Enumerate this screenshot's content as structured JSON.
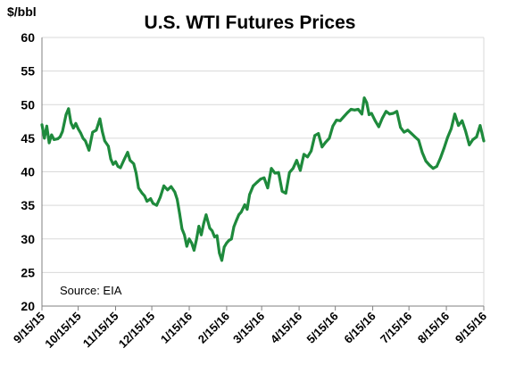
{
  "chart_data": {
    "type": "line",
    "title": "U.S. WTI Futures Prices",
    "ylabel": "$/bbl",
    "xlabel": "",
    "ylim": [
      20,
      60
    ],
    "yticks": [
      "20",
      "25",
      "30",
      "35",
      "40",
      "45",
      "50",
      "55",
      "60"
    ],
    "xlim": [
      "2015-09-15",
      "2016-09-15"
    ],
    "xticks": [
      {
        "date": "2015-09-15",
        "label": "9/15/15"
      },
      {
        "date": "2015-10-15",
        "label": "10/15/15"
      },
      {
        "date": "2015-11-15",
        "label": "11/15/15"
      },
      {
        "date": "2015-12-15",
        "label": "12/15/15"
      },
      {
        "date": "2016-01-15",
        "label": "1/15/16"
      },
      {
        "date": "2016-02-15",
        "label": "2/15/16"
      },
      {
        "date": "2016-03-15",
        "label": "3/15/16"
      },
      {
        "date": "2016-04-15",
        "label": "4/15/16"
      },
      {
        "date": "2016-05-15",
        "label": "5/15/16"
      },
      {
        "date": "2016-06-15",
        "label": "6/15/16"
      },
      {
        "date": "2016-07-15",
        "label": "7/15/16"
      },
      {
        "date": "2016-08-15",
        "label": "8/15/16"
      },
      {
        "date": "2016-09-15",
        "label": "9/15/16"
      }
    ],
    "grid": {
      "horizontal": true,
      "vertical": false
    },
    "annotation": "Source: EIA",
    "line_color": "#1e8a3c",
    "series": [
      {
        "name": "",
        "x": [
          "2015-09-15",
          "2015-09-17",
          "2015-09-19",
          "2015-09-21",
          "2015-09-23",
          "2015-09-25",
          "2015-09-28",
          "2015-09-30",
          "2015-10-02",
          "2015-10-05",
          "2015-10-07",
          "2015-10-09",
          "2015-10-11",
          "2015-10-13",
          "2015-10-15",
          "2015-10-17",
          "2015-10-19",
          "2015-10-21",
          "2015-10-24",
          "2015-10-27",
          "2015-10-30",
          "2015-11-02",
          "2015-11-04",
          "2015-11-06",
          "2015-11-09",
          "2015-11-11",
          "2015-11-13",
          "2015-11-15",
          "2015-11-17",
          "2015-11-19",
          "2015-11-22",
          "2015-11-25",
          "2015-11-27",
          "2015-11-30",
          "2015-12-02",
          "2015-12-04",
          "2015-12-07",
          "2015-12-09",
          "2015-12-11",
          "2015-12-14",
          "2015-12-16",
          "2015-12-19",
          "2015-12-22",
          "2015-12-25",
          "2015-12-28",
          "2015-12-31",
          "2016-01-03",
          "2016-01-05",
          "2016-01-07",
          "2016-01-09",
          "2016-01-11",
          "2016-01-13",
          "2016-01-15",
          "2016-01-17",
          "2016-01-19",
          "2016-01-21",
          "2016-01-23",
          "2016-01-25",
          "2016-01-27",
          "2016-01-29",
          "2016-02-01",
          "2016-02-03",
          "2016-02-05",
          "2016-02-07",
          "2016-02-09",
          "2016-02-11",
          "2016-02-13",
          "2016-02-15",
          "2016-02-17",
          "2016-02-19",
          "2016-02-21",
          "2016-02-23",
          "2016-02-25",
          "2016-02-27",
          "2016-03-01",
          "2016-03-03",
          "2016-03-05",
          "2016-03-08",
          "2016-03-11",
          "2016-03-14",
          "2016-03-17",
          "2016-03-20",
          "2016-03-23",
          "2016-03-26",
          "2016-03-29",
          "2016-04-01",
          "2016-04-04",
          "2016-04-07",
          "2016-04-10",
          "2016-04-13",
          "2016-04-16",
          "2016-04-19",
          "2016-04-22",
          "2016-04-25",
          "2016-04-28",
          "2016-05-01",
          "2016-05-04",
          "2016-05-07",
          "2016-05-10",
          "2016-05-13",
          "2016-05-16",
          "2016-05-19",
          "2016-05-22",
          "2016-05-25",
          "2016-05-28",
          "2016-05-31",
          "2016-06-03",
          "2016-06-06",
          "2016-06-08",
          "2016-06-10",
          "2016-06-12",
          "2016-06-14",
          "2016-06-17",
          "2016-06-20",
          "2016-06-23",
          "2016-06-26",
          "2016-06-29",
          "2016-07-02",
          "2016-07-05",
          "2016-07-08",
          "2016-07-11",
          "2016-07-14",
          "2016-07-17",
          "2016-07-20",
          "2016-07-23",
          "2016-07-26",
          "2016-07-29",
          "2016-08-01",
          "2016-08-04",
          "2016-08-07",
          "2016-08-10",
          "2016-08-13",
          "2016-08-16",
          "2016-08-19",
          "2016-08-22",
          "2016-08-25",
          "2016-08-28",
          "2016-08-31",
          "2016-09-03",
          "2016-09-06",
          "2016-09-09",
          "2016-09-12",
          "2016-09-15"
        ],
        "values": [
          47.0,
          45.0,
          46.8,
          44.3,
          45.5,
          44.8,
          44.9,
          45.2,
          46.0,
          48.5,
          49.4,
          47.3,
          46.5,
          47.2,
          46.4,
          45.8,
          45.0,
          44.6,
          43.2,
          45.9,
          46.2,
          47.9,
          46.0,
          44.6,
          43.8,
          41.9,
          41.1,
          41.5,
          40.8,
          40.6,
          41.8,
          42.9,
          41.7,
          41.2,
          39.8,
          37.6,
          36.8,
          36.4,
          35.6,
          36.0,
          35.3,
          35.0,
          36.2,
          37.9,
          37.3,
          37.8,
          37.0,
          35.9,
          33.8,
          31.5,
          30.6,
          28.9,
          30.0,
          29.4,
          28.3,
          29.9,
          31.9,
          30.6,
          32.3,
          33.6,
          31.6,
          31.2,
          30.3,
          30.5,
          27.9,
          26.8,
          28.8,
          29.4,
          29.8,
          30.0,
          31.8,
          32.7,
          33.6,
          34.0,
          35.1,
          34.4,
          36.6,
          37.9,
          38.4,
          38.9,
          39.1,
          37.6,
          40.5,
          39.8,
          39.9,
          37.1,
          36.8,
          39.9,
          40.5,
          41.7,
          40.2,
          42.6,
          42.2,
          43.1,
          45.4,
          45.7,
          43.7,
          44.4,
          45.0,
          46.8,
          47.7,
          47.6,
          48.2,
          48.8,
          49.3,
          49.2,
          49.3,
          48.6,
          51.0,
          50.3,
          48.5,
          48.7,
          47.6,
          46.7,
          48.0,
          49.0,
          48.6,
          48.7,
          49.0,
          46.6,
          45.9,
          46.2,
          45.7,
          45.2,
          44.7,
          42.9,
          41.6,
          41.0,
          40.5,
          40.8,
          42.0,
          43.5,
          45.1,
          46.4,
          48.6,
          46.9,
          47.6,
          46.0,
          44.0,
          44.8,
          45.2,
          46.9,
          44.6
        ]
      }
    ]
  }
}
